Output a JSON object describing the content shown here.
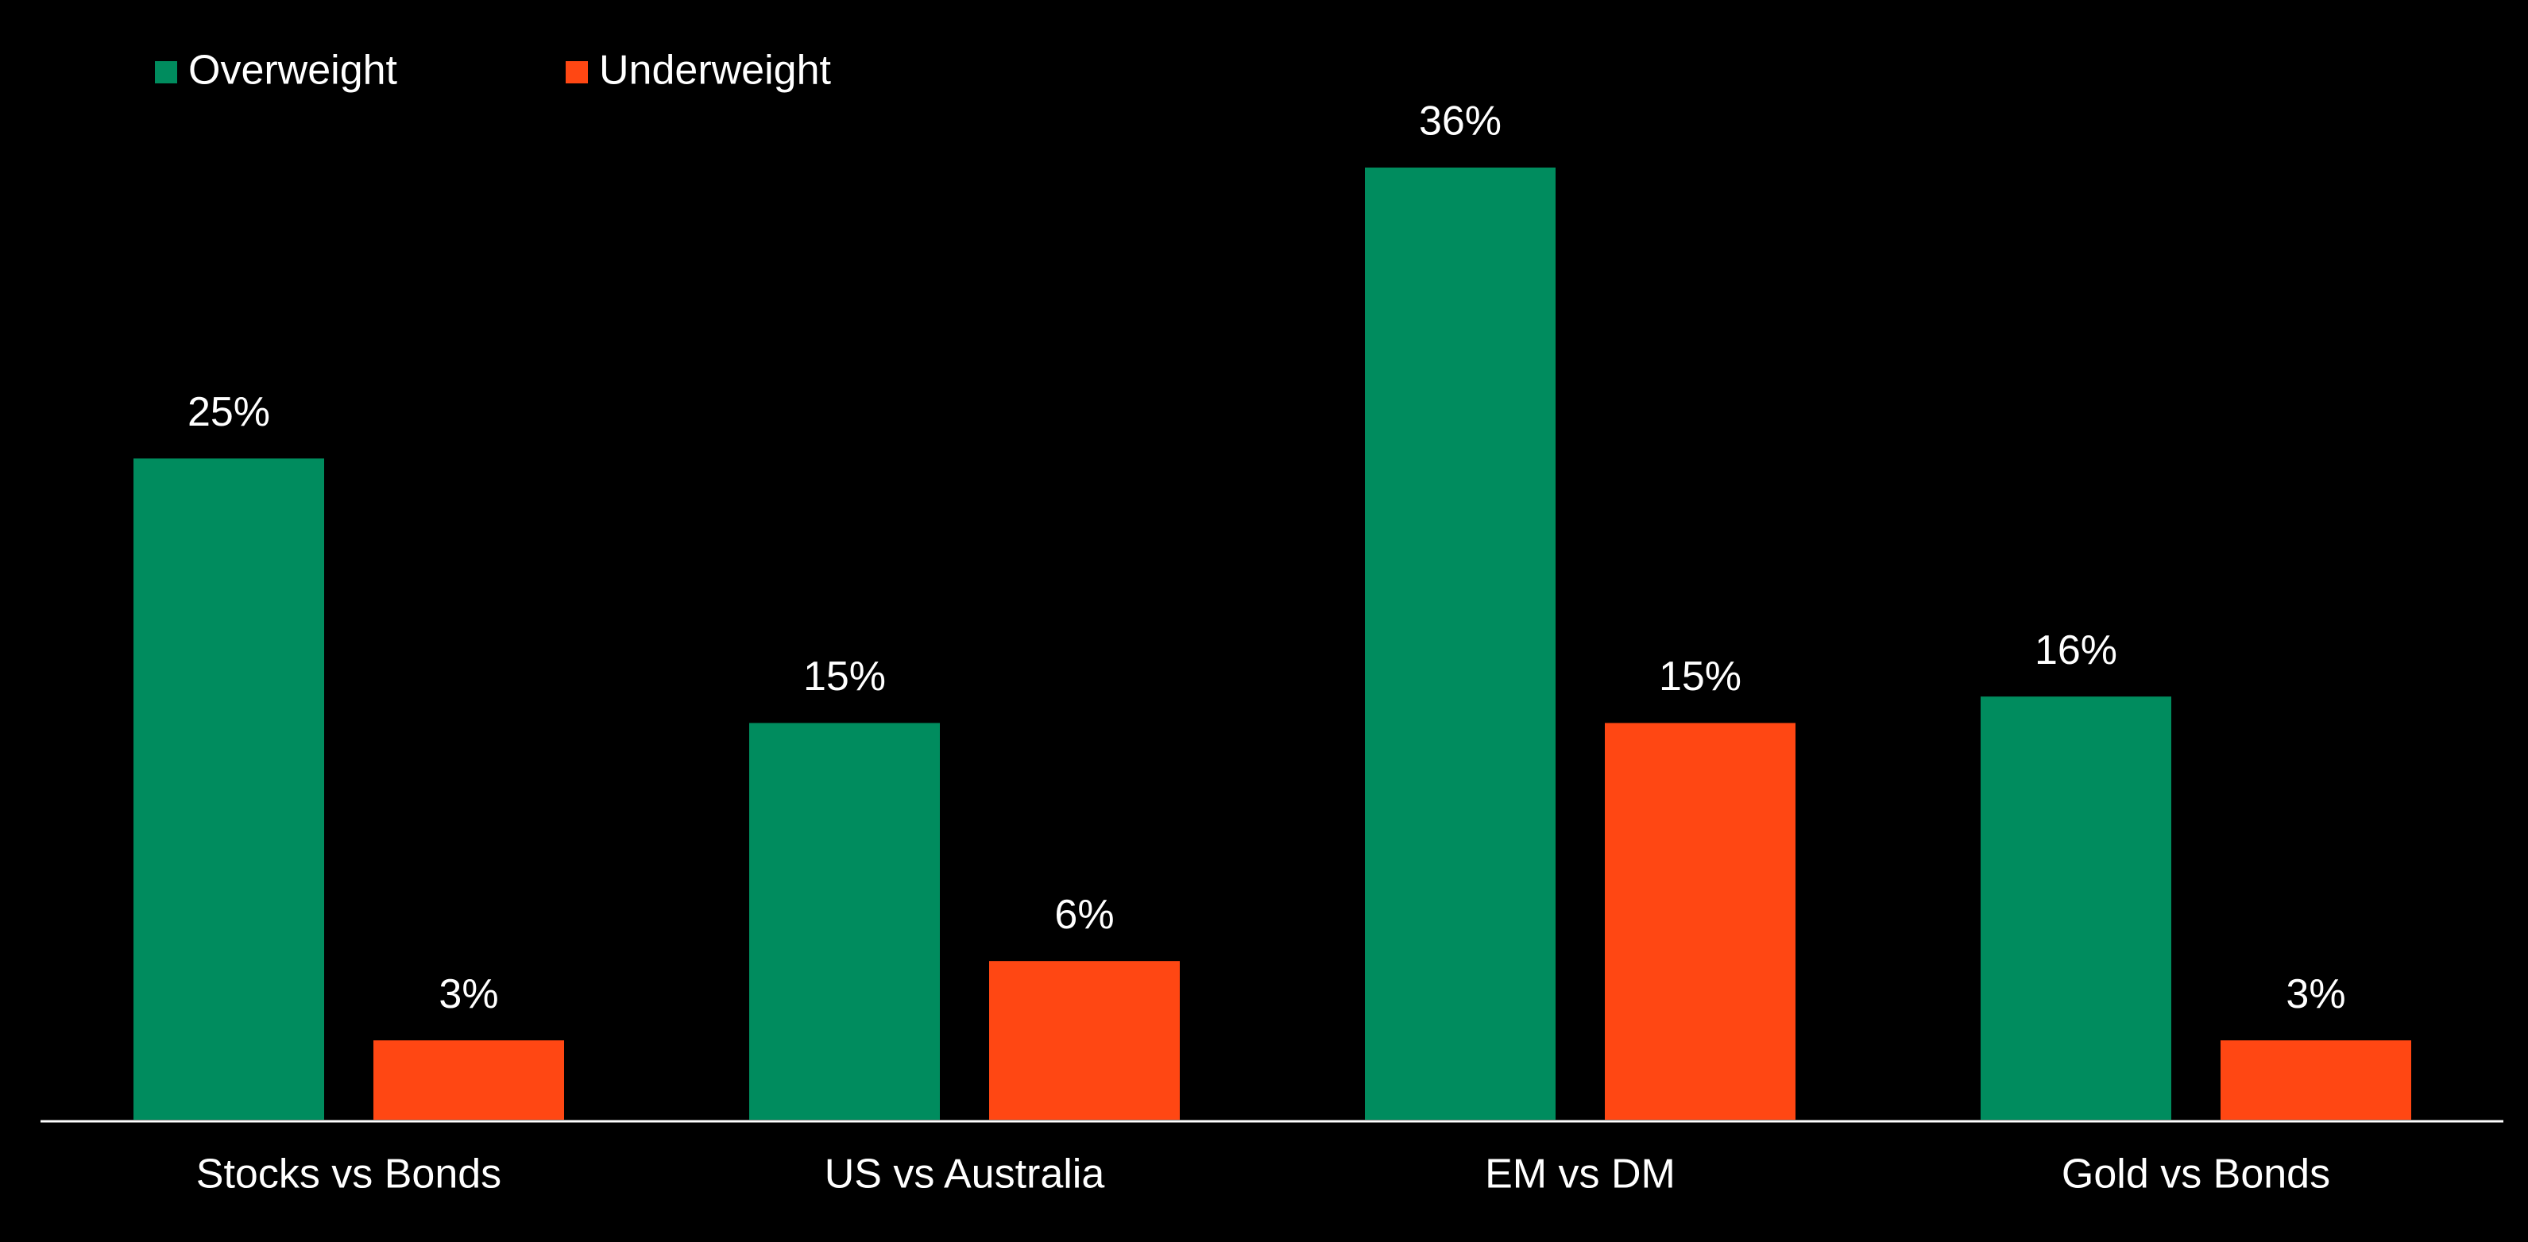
{
  "chart_data": {
    "type": "bar",
    "categories": [
      "Stocks vs Bonds",
      "US vs Australia",
      "EM vs DM",
      "Gold vs Bonds"
    ],
    "series": [
      {
        "name": "Overweight",
        "color": "#008c5e",
        "values": [
          25,
          15,
          36,
          16
        ],
        "value_labels": [
          "25%",
          "15%",
          "36%",
          "16%"
        ]
      },
      {
        "name": "Underweight",
        "color": "#ff4713",
        "values": [
          3,
          6,
          15,
          3
        ],
        "value_labels": [
          "3%",
          "6%",
          "15%",
          "3%"
        ]
      }
    ],
    "legend": "top-left"
  }
}
